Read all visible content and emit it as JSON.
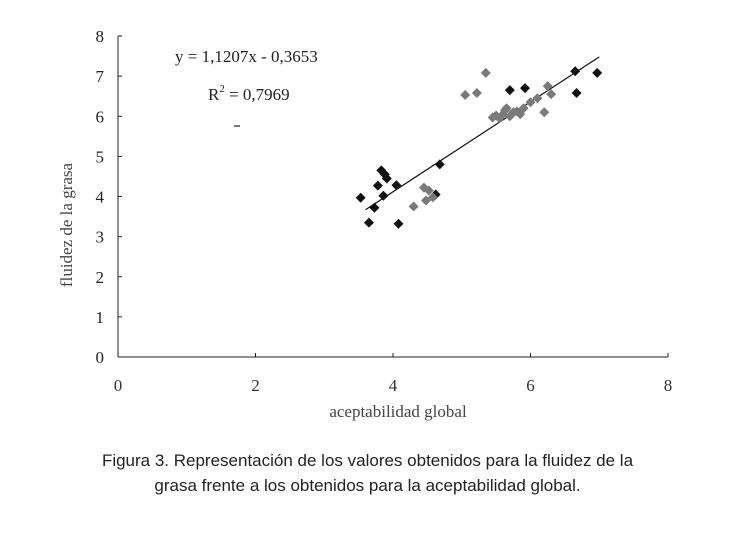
{
  "chart_data": {
    "type": "scatter",
    "xlabel": "aceptabilidad global",
    "ylabel": "fluidez de la grasa",
    "xlim": [
      0,
      8
    ],
    "ylim": [
      0,
      8
    ],
    "xticks": [
      "0",
      "2",
      "4",
      "6",
      "8"
    ],
    "yticks": [
      "0",
      "1",
      "2",
      "3",
      "4",
      "5",
      "6",
      "7",
      "8"
    ],
    "grid": false,
    "equation": "y = 1,1207x - 0,3653",
    "r2_label": "R",
    "r2_sup": "2",
    "r2_value": " = 0,7969",
    "trendline": {
      "slope": 1.1207,
      "intercept": -0.3653,
      "x_range": [
        3.6,
        7.0
      ]
    },
    "colors": {
      "dark": "#111111",
      "grey": "#7a7a7a",
      "line": "#111111"
    },
    "series": [
      {
        "color_key": "dark",
        "points": [
          [
            3.53,
            3.97
          ],
          [
            3.65,
            3.35
          ],
          [
            3.73,
            3.72
          ],
          [
            3.78,
            4.27
          ],
          [
            3.83,
            4.65
          ],
          [
            3.86,
            4.02
          ],
          [
            3.88,
            4.55
          ],
          [
            3.91,
            4.45
          ],
          [
            4.05,
            4.28
          ],
          [
            4.08,
            3.32
          ],
          [
            4.62,
            4.05
          ],
          [
            4.68,
            4.8
          ],
          [
            5.7,
            6.65
          ],
          [
            5.92,
            6.7
          ],
          [
            6.65,
            7.12
          ],
          [
            6.67,
            6.58
          ],
          [
            6.97,
            7.08
          ]
        ]
      },
      {
        "color_key": "grey",
        "points": [
          [
            4.3,
            3.75
          ],
          [
            4.45,
            4.22
          ],
          [
            4.48,
            3.9
          ],
          [
            4.52,
            4.15
          ],
          [
            4.58,
            3.98
          ],
          [
            5.05,
            6.53
          ],
          [
            5.22,
            6.58
          ],
          [
            5.35,
            7.08
          ],
          [
            5.45,
            5.97
          ],
          [
            5.5,
            6.02
          ],
          [
            5.55,
            5.95
          ],
          [
            5.6,
            6.05
          ],
          [
            5.63,
            6.15
          ],
          [
            5.65,
            6.2
          ],
          [
            5.7,
            6.0
          ],
          [
            5.75,
            6.1
          ],
          [
            5.8,
            6.12
          ],
          [
            5.85,
            6.05
          ],
          [
            5.9,
            6.2
          ],
          [
            6.0,
            6.35
          ],
          [
            6.1,
            6.45
          ],
          [
            6.2,
            6.1
          ],
          [
            6.25,
            6.75
          ],
          [
            6.3,
            6.55
          ]
        ]
      }
    ]
  },
  "caption": {
    "line1": "Figura 3. Representación de los valores obtenidos para la fluidez de la",
    "line2": "grasa frente a los obtenidos para la aceptabilidad global."
  }
}
